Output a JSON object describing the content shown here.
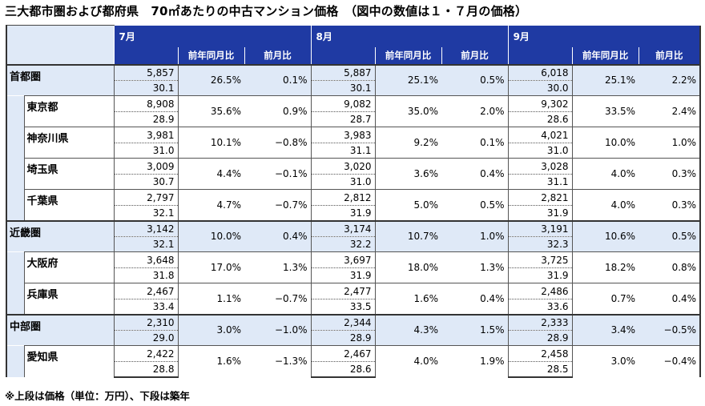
{
  "title": "三大都市圏および都府県　70㎡あたりの中古マンション価格　（図中の数値は１・７月の価格）",
  "footnote": "※上段は価格（単位：万円）、下段は築年",
  "months": [
    {
      "label": "7月",
      "yoy_header": "前年同月比",
      "mom_header": "前月比"
    },
    {
      "label": "8月",
      "yoy_header": "前年同月比",
      "mom_header": "前月比"
    },
    {
      "label": "9月",
      "yoy_header": "前年同月比",
      "mom_header": "前月比"
    }
  ],
  "rows": [
    {
      "name": "首都圏",
      "level": "region",
      "values": [
        {
          "price": "5,857",
          "age": "30.1",
          "yoy": "26.5%",
          "mom": "0.1%"
        },
        {
          "price": "5,887",
          "age": "30.1",
          "yoy": "25.1%",
          "mom": "0.5%"
        },
        {
          "price": "6,018",
          "age": "30.0",
          "yoy": "25.1%",
          "mom": "2.2%"
        }
      ]
    },
    {
      "name": "東京都",
      "level": "pref",
      "values": [
        {
          "price": "8,908",
          "age": "28.9",
          "yoy": "35.6%",
          "mom": "0.9%"
        },
        {
          "price": "9,082",
          "age": "28.7",
          "yoy": "35.0%",
          "mom": "2.0%"
        },
        {
          "price": "9,302",
          "age": "28.6",
          "yoy": "33.5%",
          "mom": "2.4%"
        }
      ]
    },
    {
      "name": "神奈川県",
      "level": "pref",
      "values": [
        {
          "price": "3,981",
          "age": "31.0",
          "yoy": "10.1%",
          "mom": "−0.8%"
        },
        {
          "price": "3,983",
          "age": "31.1",
          "yoy": "9.2%",
          "mom": "0.1%"
        },
        {
          "price": "4,021",
          "age": "31.0",
          "yoy": "10.0%",
          "mom": "1.0%"
        }
      ]
    },
    {
      "name": "埼玉県",
      "level": "pref",
      "values": [
        {
          "price": "3,009",
          "age": "30.7",
          "yoy": "4.4%",
          "mom": "−0.1%"
        },
        {
          "price": "3,020",
          "age": "31.0",
          "yoy": "3.6%",
          "mom": "0.4%"
        },
        {
          "price": "3,028",
          "age": "31.1",
          "yoy": "4.0%",
          "mom": "0.3%"
        }
      ]
    },
    {
      "name": "千葉県",
      "level": "pref",
      "values": [
        {
          "price": "2,797",
          "age": "32.1",
          "yoy": "4.7%",
          "mom": "−0.7%"
        },
        {
          "price": "2,812",
          "age": "31.9",
          "yoy": "5.0%",
          "mom": "0.5%"
        },
        {
          "price": "2,821",
          "age": "31.9",
          "yoy": "4.0%",
          "mom": "0.3%"
        }
      ]
    },
    {
      "name": "近畿圏",
      "level": "region",
      "values": [
        {
          "price": "3,142",
          "age": "32.1",
          "yoy": "10.0%",
          "mom": "0.4%"
        },
        {
          "price": "3,174",
          "age": "32.2",
          "yoy": "10.7%",
          "mom": "1.0%"
        },
        {
          "price": "3,191",
          "age": "32.3",
          "yoy": "10.6%",
          "mom": "0.5%"
        }
      ]
    },
    {
      "name": "大阪府",
      "level": "pref",
      "values": [
        {
          "price": "3,648",
          "age": "31.8",
          "yoy": "17.0%",
          "mom": "1.3%"
        },
        {
          "price": "3,697",
          "age": "31.9",
          "yoy": "18.0%",
          "mom": "1.3%"
        },
        {
          "price": "3,725",
          "age": "31.9",
          "yoy": "18.2%",
          "mom": "0.8%"
        }
      ]
    },
    {
      "name": "兵庫県",
      "level": "pref",
      "values": [
        {
          "price": "2,467",
          "age": "33.4",
          "yoy": "1.1%",
          "mom": "−0.7%"
        },
        {
          "price": "2,477",
          "age": "33.5",
          "yoy": "1.6%",
          "mom": "0.4%"
        },
        {
          "price": "2,486",
          "age": "33.6",
          "yoy": "0.7%",
          "mom": "0.4%"
        }
      ]
    },
    {
      "name": "中部圏",
      "level": "region",
      "values": [
        {
          "price": "2,310",
          "age": "29.0",
          "yoy": "3.0%",
          "mom": "−1.0%"
        },
        {
          "price": "2,344",
          "age": "28.9",
          "yoy": "4.3%",
          "mom": "1.5%"
        },
        {
          "price": "2,333",
          "age": "28.9",
          "yoy": "3.4%",
          "mom": "−0.5%"
        }
      ]
    },
    {
      "name": "愛知県",
      "level": "pref",
      "values": [
        {
          "price": "2,422",
          "age": "28.8",
          "yoy": "1.6%",
          "mom": "−1.3%"
        },
        {
          "price": "2,467",
          "age": "28.6",
          "yoy": "4.0%",
          "mom": "1.9%"
        },
        {
          "price": "2,458",
          "age": "28.5",
          "yoy": "3.0%",
          "mom": "−0.4%"
        }
      ]
    }
  ]
}
